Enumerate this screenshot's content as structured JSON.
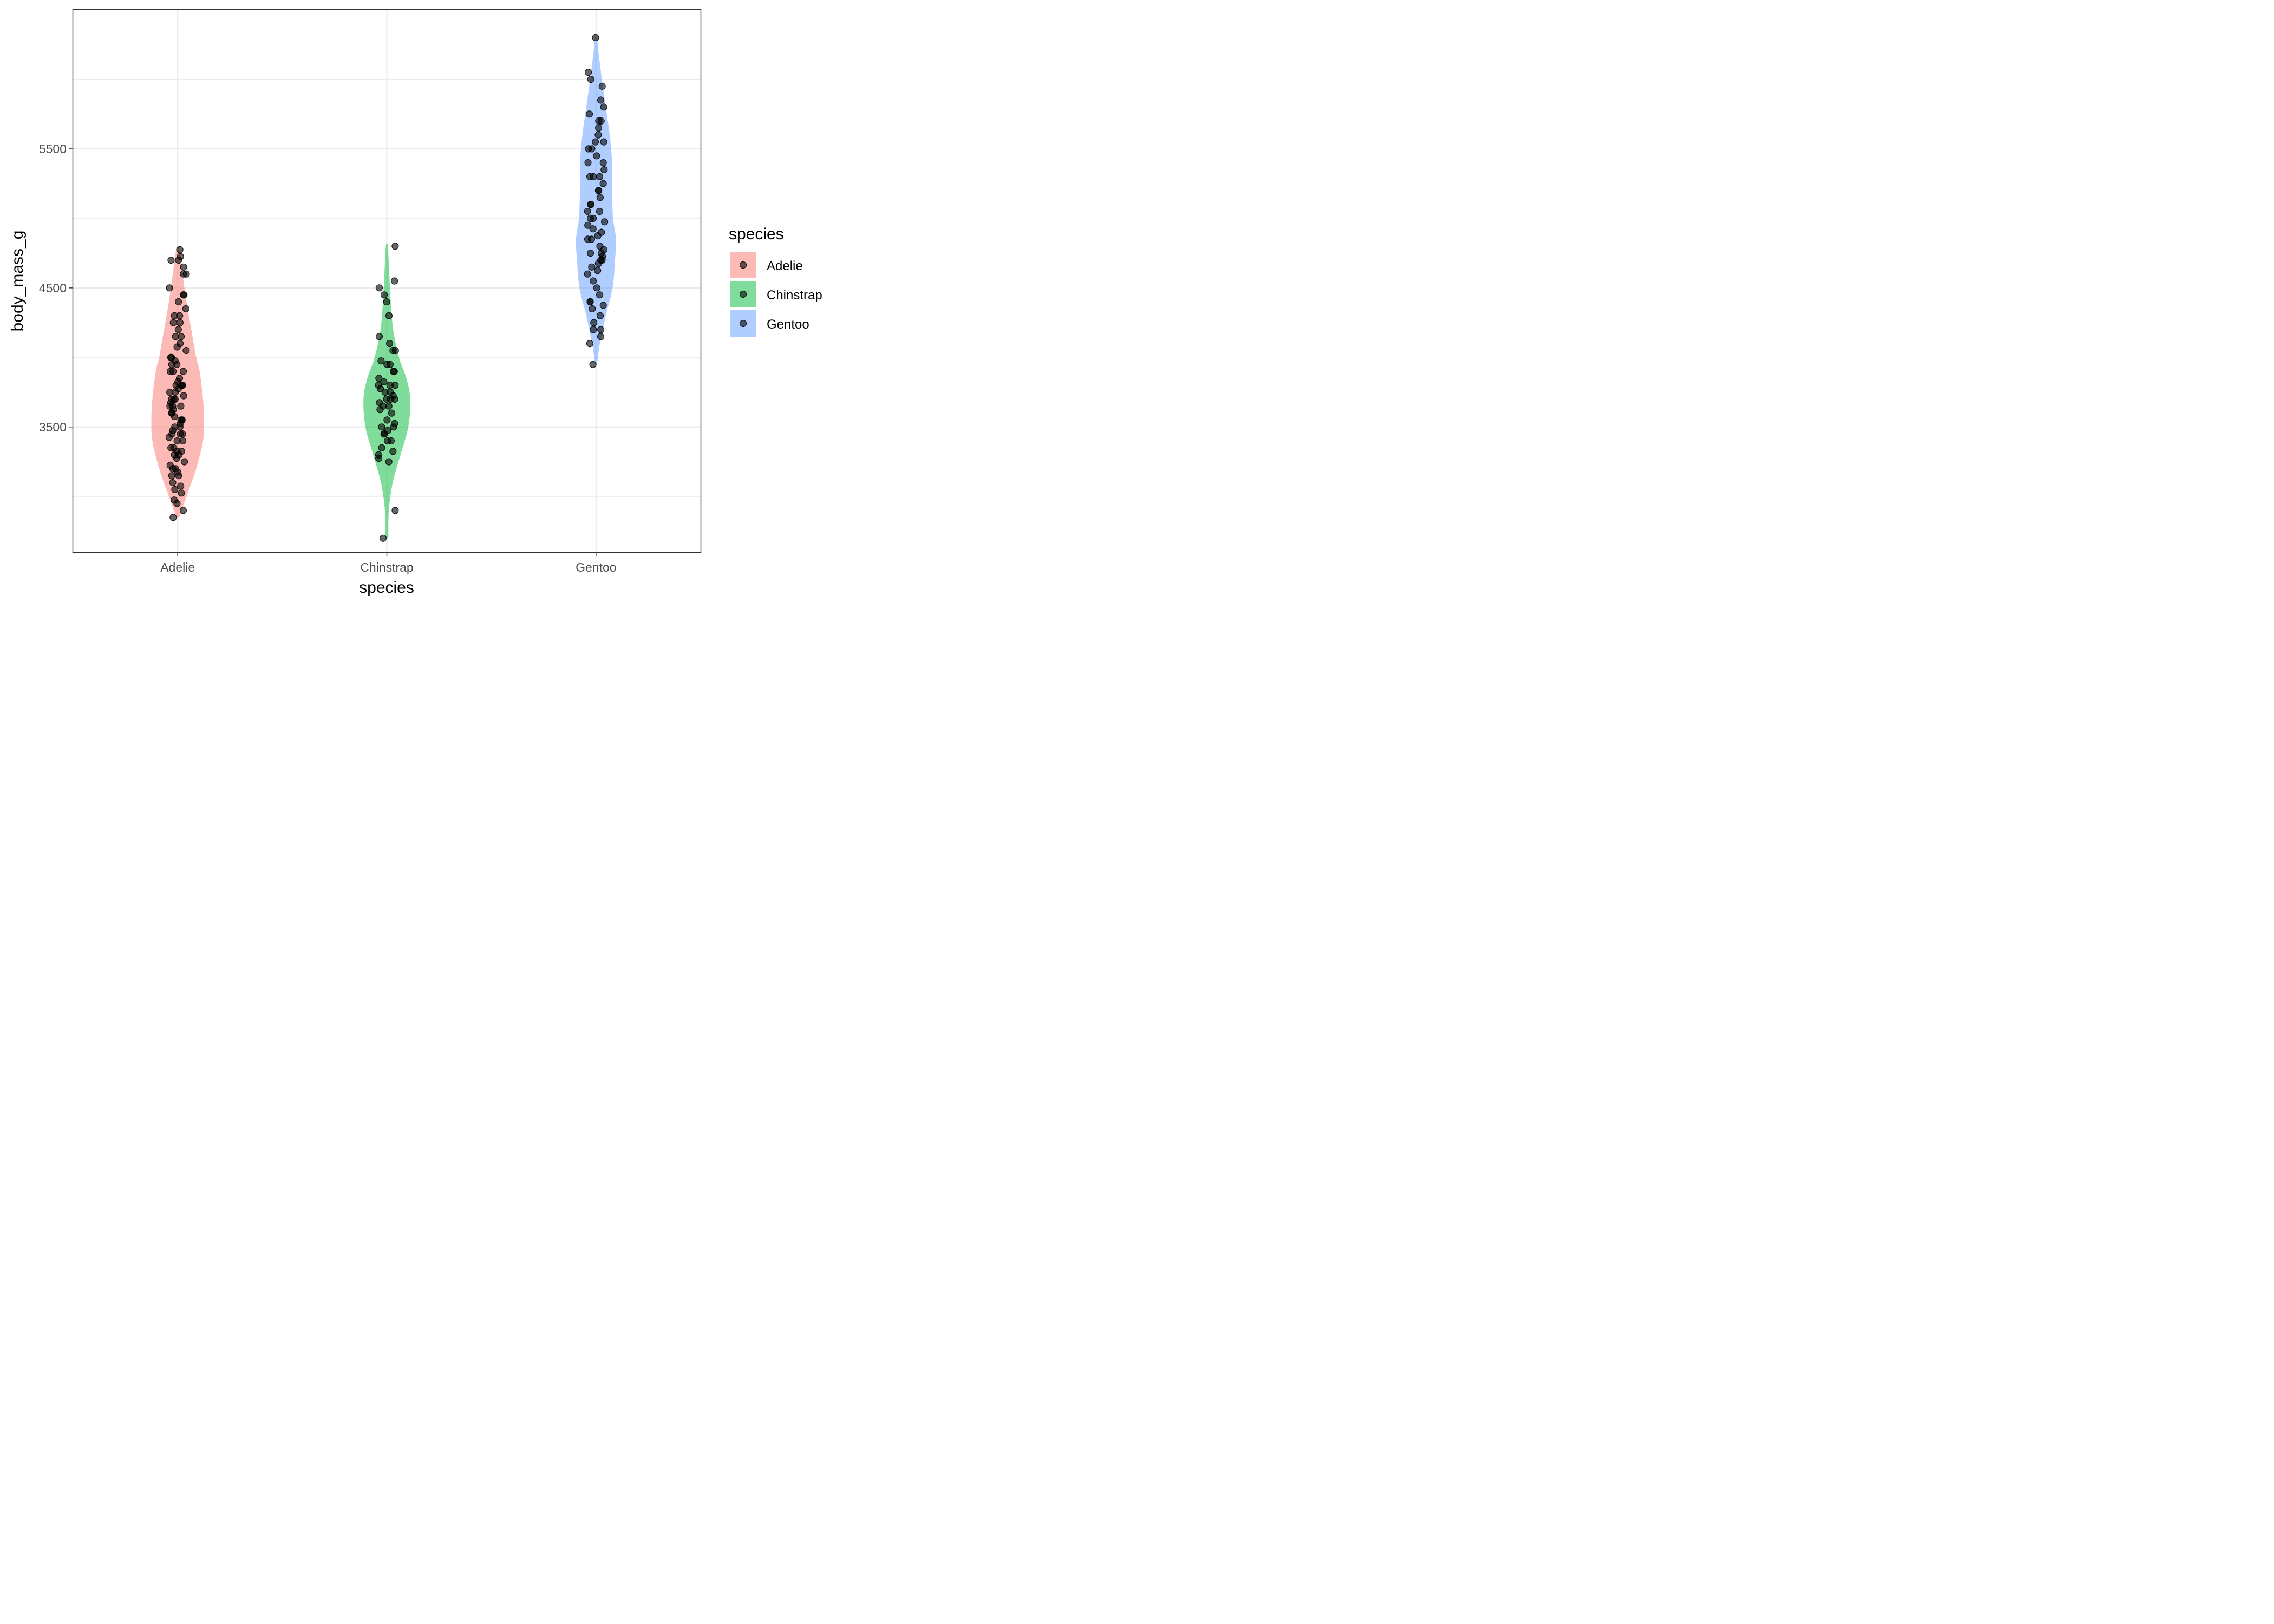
{
  "chart_data": {
    "type": "violin",
    "xlabel": "species",
    "ylabel": "body_mass_g",
    "categories": [
      "Adelie",
      "Chinstrap",
      "Gentoo"
    ],
    "ylim": [
      2600,
      6500
    ],
    "y_ticks": [
      3500,
      4500,
      5500
    ],
    "y_tick_labels": [
      "3500",
      "4500",
      "5500"
    ],
    "grid": true,
    "legend": {
      "title": "species",
      "position": "right",
      "entries": [
        "Adelie",
        "Chinstrap",
        "Gentoo"
      ]
    },
    "colors": {
      "Adelie": "#F8766D",
      "Chinstrap": "#00BA38",
      "Gentoo": "#619CFF",
      "points": "#000000",
      "grid": "#ebebeb",
      "panel_border": "#333333"
    },
    "series": [
      {
        "name": "Adelie",
        "violin_profile": [
          [
            2850,
            0.03
          ],
          [
            3000,
            0.18
          ],
          [
            3200,
            0.38
          ],
          [
            3400,
            0.52
          ],
          [
            3550,
            0.54
          ],
          [
            3700,
            0.52
          ],
          [
            3900,
            0.45
          ],
          [
            4000,
            0.38
          ],
          [
            4200,
            0.28
          ],
          [
            4400,
            0.18
          ],
          [
            4600,
            0.1
          ],
          [
            4775,
            0.03
          ]
        ],
        "values": [
          2850,
          2900,
          2950,
          2975,
          3025,
          3050,
          3075,
          3100,
          3150,
          3150,
          3175,
          3200,
          3200,
          3225,
          3250,
          3275,
          3300,
          3300,
          3325,
          3325,
          3350,
          3350,
          3400,
          3400,
          3425,
          3450,
          3450,
          3450,
          3475,
          3500,
          3500,
          3525,
          3550,
          3550,
          3550,
          3575,
          3600,
          3600,
          3625,
          3650,
          3650,
          3650,
          3675,
          3700,
          3700,
          3700,
          3725,
          3750,
          3750,
          3775,
          3800,
          3800,
          3800,
          3800,
          3825,
          3850,
          3900,
          3900,
          3900,
          3950,
          3950,
          3975,
          4000,
          4000,
          4050,
          4075,
          4100,
          4150,
          4150,
          4200,
          4250,
          4250,
          4300,
          4300,
          4350,
          4400,
          4450,
          4450,
          4500,
          4600,
          4600,
          4650,
          4700,
          4700,
          4725,
          4775
        ]
      },
      {
        "name": "Chinstrap",
        "violin_profile": [
          [
            2700,
            0.03
          ],
          [
            2900,
            0.04
          ],
          [
            3100,
            0.12
          ],
          [
            3300,
            0.28
          ],
          [
            3500,
            0.44
          ],
          [
            3700,
            0.48
          ],
          [
            3850,
            0.4
          ],
          [
            4000,
            0.25
          ],
          [
            4200,
            0.13
          ],
          [
            4400,
            0.08
          ],
          [
            4600,
            0.05
          ],
          [
            4800,
            0.02
          ]
        ],
        "values": [
          2700,
          2900,
          3250,
          3275,
          3300,
          3325,
          3350,
          3400,
          3400,
          3450,
          3450,
          3475,
          3500,
          3500,
          3525,
          3550,
          3600,
          3625,
          3650,
          3650,
          3675,
          3700,
          3700,
          3700,
          3725,
          3750,
          3750,
          3775,
          3800,
          3800,
          3800,
          3825,
          3850,
          3900,
          3900,
          3950,
          3950,
          3975,
          4050,
          4050,
          4100,
          4150,
          4300,
          4400,
          4450,
          4500,
          4550,
          4800
        ]
      },
      {
        "name": "Gentoo",
        "violin_profile": [
          [
            3950,
            0.02
          ],
          [
            4100,
            0.08
          ],
          [
            4300,
            0.2
          ],
          [
            4500,
            0.34
          ],
          [
            4700,
            0.39
          ],
          [
            4850,
            0.41
          ],
          [
            5000,
            0.35
          ],
          [
            5200,
            0.33
          ],
          [
            5400,
            0.33
          ],
          [
            5600,
            0.28
          ],
          [
            5800,
            0.2
          ],
          [
            6000,
            0.12
          ],
          [
            6200,
            0.05
          ],
          [
            6300,
            0.02
          ]
        ],
        "values": [
          3950,
          4100,
          4150,
          4200,
          4200,
          4250,
          4300,
          4350,
          4375,
          4400,
          4400,
          4450,
          4500,
          4550,
          4600,
          4625,
          4650,
          4675,
          4700,
          4700,
          4725,
          4750,
          4750,
          4775,
          4800,
          4850,
          4850,
          4875,
          4900,
          4925,
          4950,
          4975,
          5000,
          5000,
          5050,
          5050,
          5100,
          5100,
          5150,
          5200,
          5200,
          5250,
          5300,
          5300,
          5300,
          5350,
          5400,
          5400,
          5450,
          5500,
          5500,
          5550,
          5550,
          5600,
          5650,
          5700,
          5700,
          5750,
          5800,
          5850,
          5950,
          6000,
          6050,
          6300
        ]
      }
    ]
  }
}
